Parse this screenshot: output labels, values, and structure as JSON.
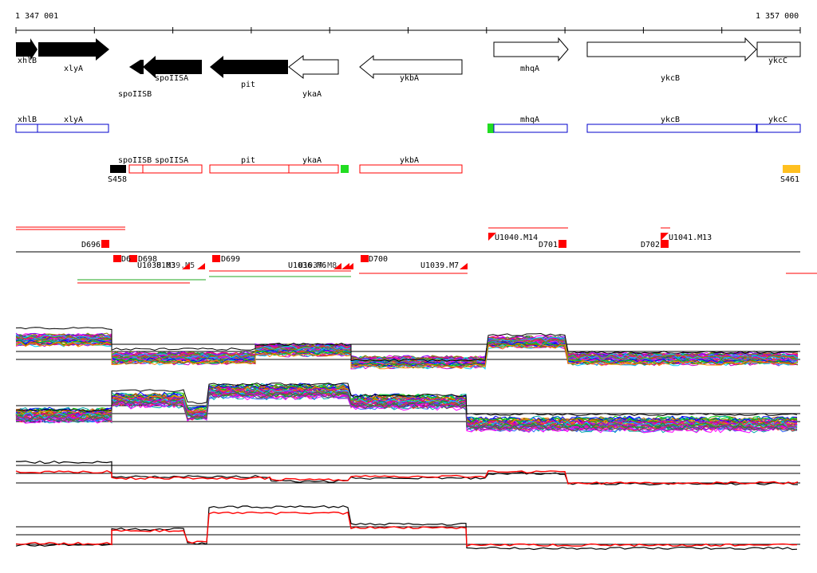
{
  "ruler": {
    "start_label": "1 347 001",
    "end_label": "1 357 000"
  },
  "genes_top": [
    {
      "label": "xhlB",
      "filled": true,
      "dir": "right"
    },
    {
      "label": "xlyA",
      "filled": true,
      "dir": "right"
    },
    {
      "label": "spoIISB",
      "filled": true,
      "dir": "left"
    },
    {
      "label": "spoIISA",
      "filled": true,
      "dir": "left"
    },
    {
      "label": "pit",
      "filled": true,
      "dir": "left"
    },
    {
      "label": "ykaA",
      "filled": false,
      "dir": "left"
    },
    {
      "label": "ykbA",
      "filled": false,
      "dir": "left"
    },
    {
      "label": "mhqA",
      "filled": false,
      "dir": "right"
    },
    {
      "label": "ykcB",
      "filled": false,
      "dir": "right"
    },
    {
      "label": "ykcC",
      "filled": false,
      "dir": "right"
    }
  ],
  "blue_boxes": [
    {
      "label": "xhlB"
    },
    {
      "label": "xlyA"
    },
    {
      "label": "mhqA"
    },
    {
      "label": "ykcB"
    },
    {
      "label": "ykcC"
    }
  ],
  "red_boxes": [
    {
      "label": "spoIISB"
    },
    {
      "label": "spoIISA"
    },
    {
      "label": "pit"
    },
    {
      "label": "ykaA"
    },
    {
      "label": "ykbA"
    }
  ],
  "sites": [
    {
      "label": "S458",
      "color": "#000000"
    },
    {
      "label": "S461",
      "color": "#ffc020"
    }
  ],
  "green_marker_color": "#22dd22",
  "features": [
    {
      "label": "D696"
    },
    {
      "label": "D698"
    },
    {
      "label": "U1038.M3"
    },
    {
      "label": "U1039.M5"
    },
    {
      "label": "D699"
    },
    {
      "label": "U1036.M6"
    },
    {
      "label": "U1037.M8"
    },
    {
      "label": "D700"
    },
    {
      "label": "U1039.M7"
    },
    {
      "label": "U1040.M14"
    },
    {
      "label": "D701"
    },
    {
      "label": "D702"
    },
    {
      "label": "U1041.M13"
    }
  ],
  "colors": {
    "black": "#000000",
    "red": "#ff0000",
    "blue": "#0000cc",
    "green": "#22dd22"
  }
}
